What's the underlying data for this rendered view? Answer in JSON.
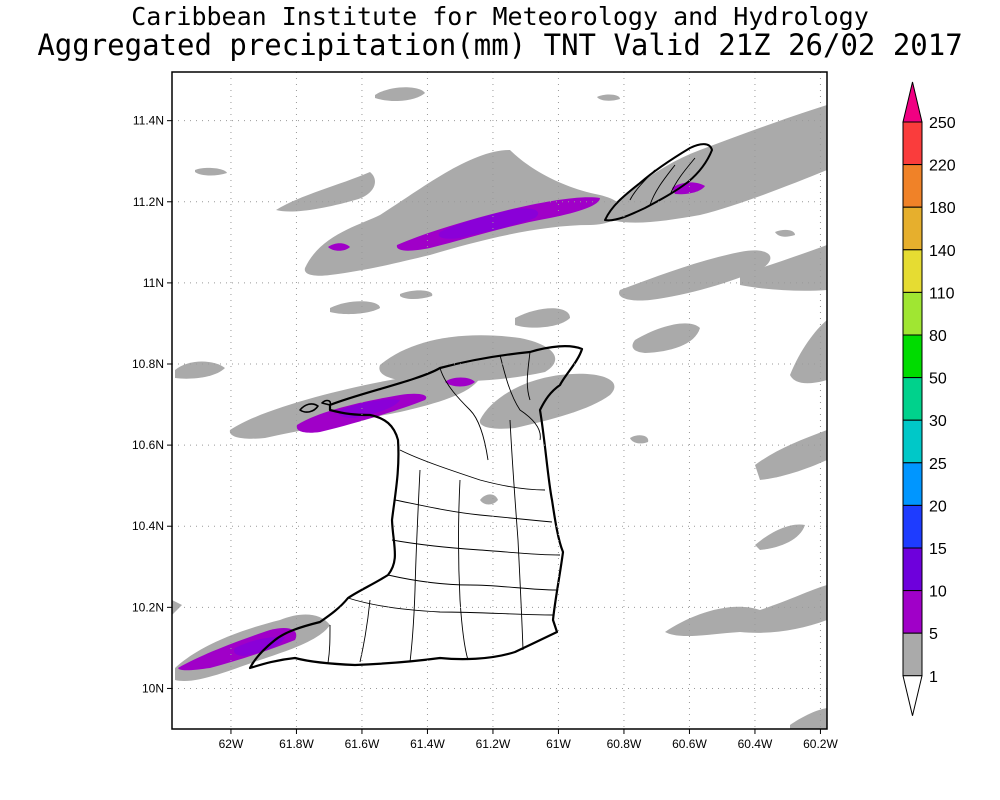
{
  "titles": {
    "line1": "Caribbean Institute for Meteorology and Hydrology",
    "line2": "Aggregated precipitation(mm) TNT Valid 21Z 26/02 2017"
  },
  "map": {
    "lon_range": [
      -62.18,
      -60.18
    ],
    "lat_range": [
      9.9,
      11.52
    ],
    "lat_ticks": [
      {
        "value": 11.4,
        "label": "11.4N"
      },
      {
        "value": 11.2,
        "label": "11.2N"
      },
      {
        "value": 11.0,
        "label": "11N"
      },
      {
        "value": 10.8,
        "label": "10.8N"
      },
      {
        "value": 10.6,
        "label": "10.6N"
      },
      {
        "value": 10.4,
        "label": "10.4N"
      },
      {
        "value": 10.2,
        "label": "10.2N"
      },
      {
        "value": 10.0,
        "label": "10N"
      }
    ],
    "lon_ticks": [
      {
        "value": -62.0,
        "label": "62W"
      },
      {
        "value": -61.8,
        "label": "61.8W"
      },
      {
        "value": -61.6,
        "label": "61.6W"
      },
      {
        "value": -61.4,
        "label": "61.4W"
      },
      {
        "value": -61.2,
        "label": "61.2W"
      },
      {
        "value": -61.0,
        "label": "61W"
      },
      {
        "value": -60.8,
        "label": "60.8W"
      },
      {
        "value": -60.6,
        "label": "60.6W"
      },
      {
        "value": -60.4,
        "label": "60.4W"
      },
      {
        "value": -60.2,
        "label": "60.2W"
      }
    ],
    "grid": "dotted"
  },
  "colorbar": {
    "levels": [
      "1",
      "5",
      "10",
      "15",
      "20",
      "25",
      "30",
      "50",
      "80",
      "110",
      "140",
      "180",
      "220",
      "250"
    ],
    "colors": [
      "#ffffff",
      "#aaaaaa",
      "#a000c8",
      "#6e00dc",
      "#1e3cff",
      "#0096ff",
      "#00c8c8",
      "#00d28c",
      "#00dc00",
      "#a0e632",
      "#e6dc32",
      "#e6af2d",
      "#f08228",
      "#fa3c3c",
      "#f00082"
    ]
  }
}
